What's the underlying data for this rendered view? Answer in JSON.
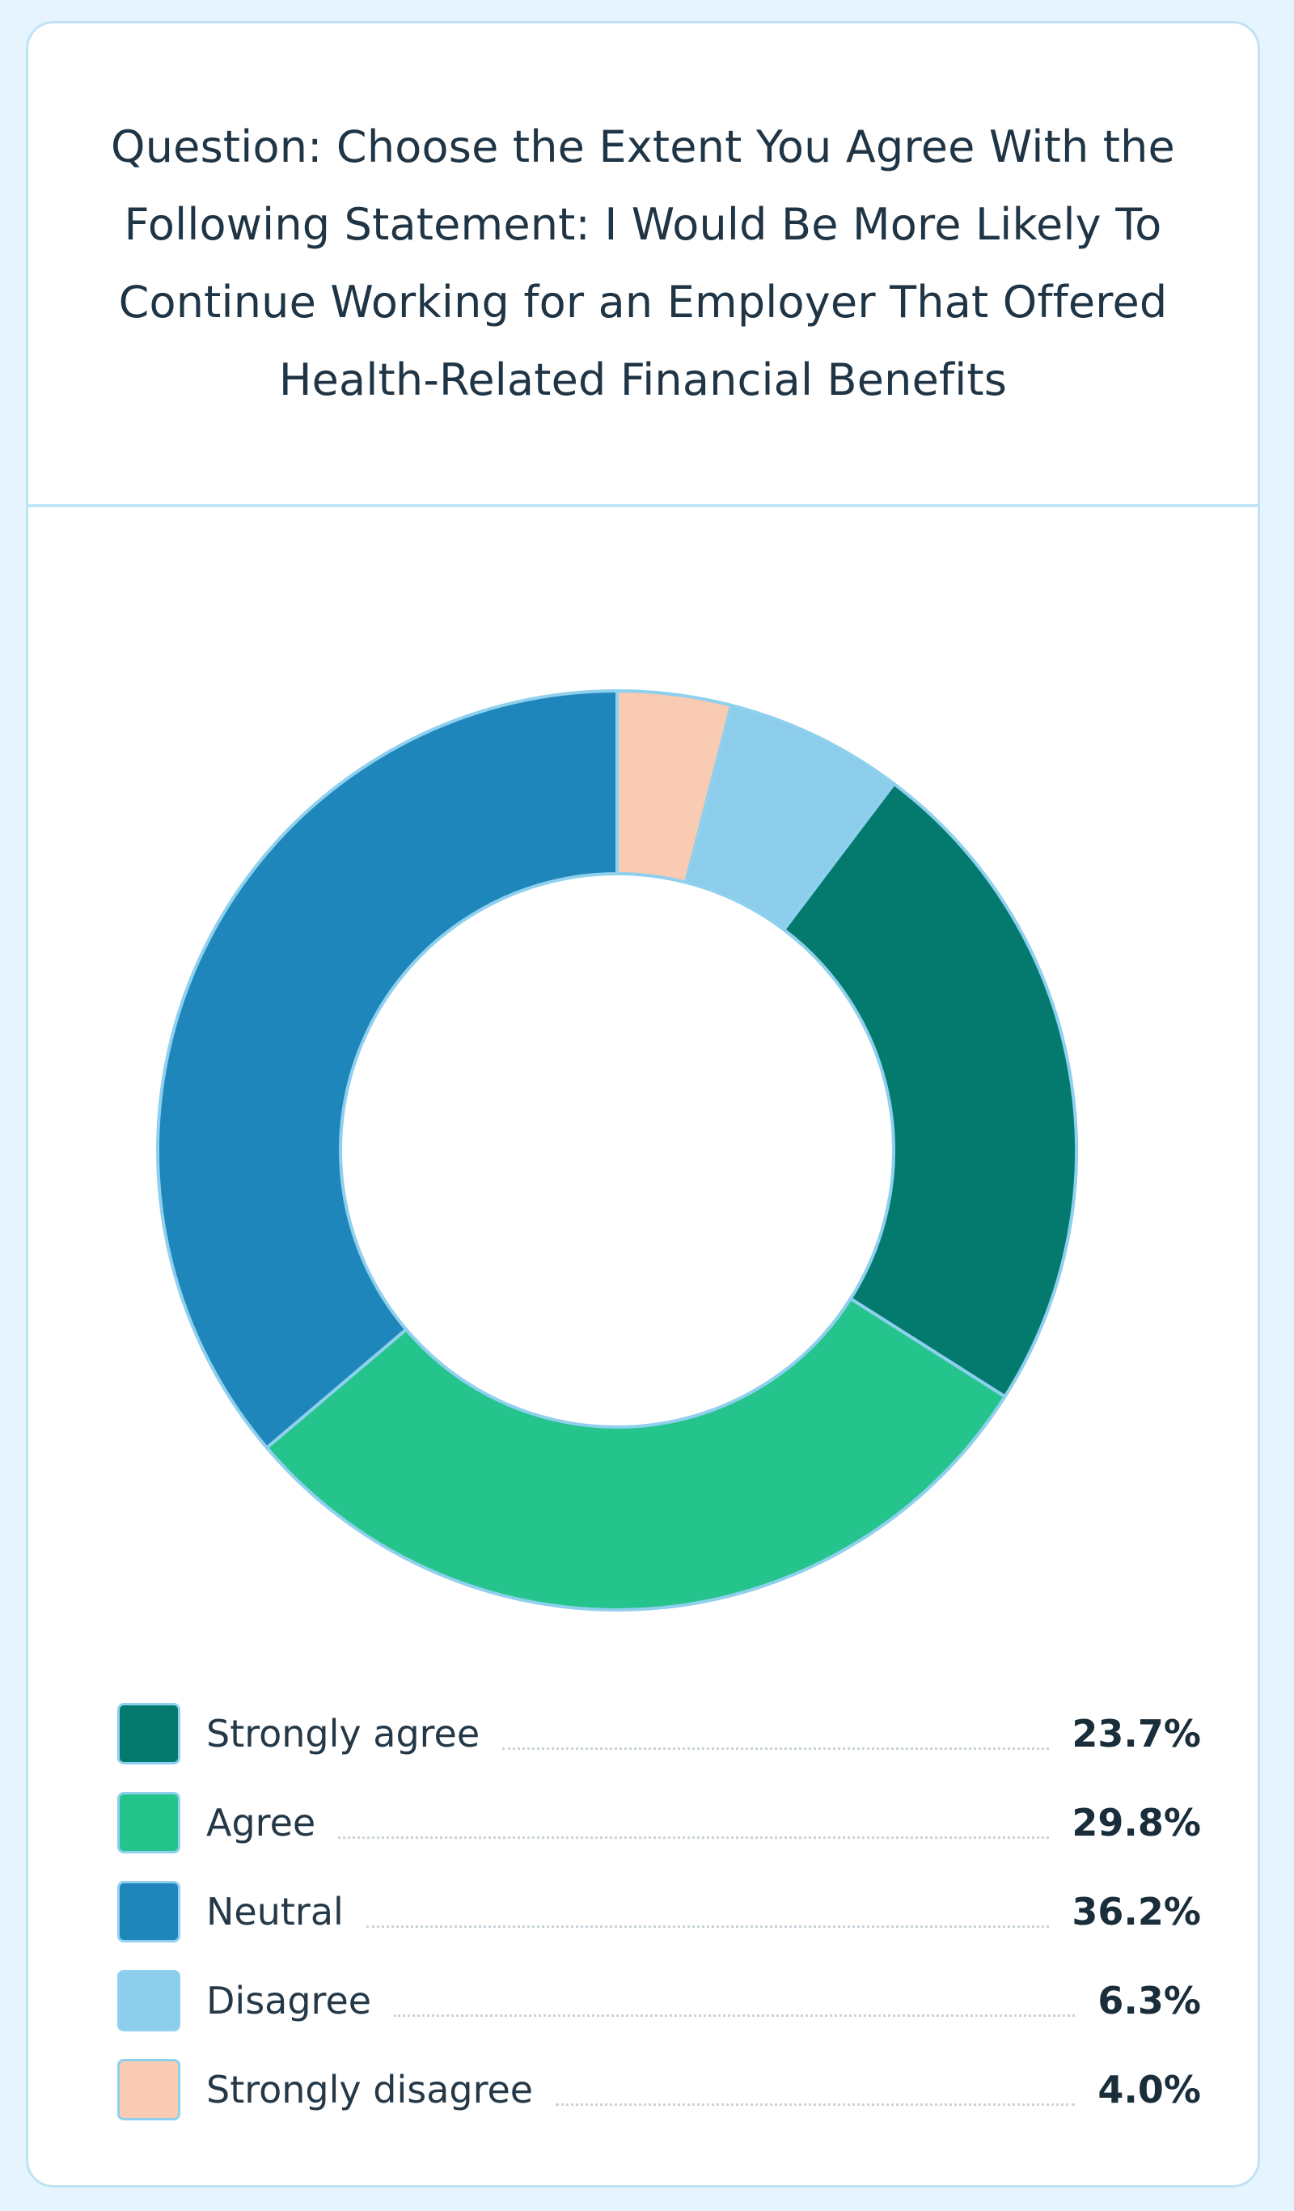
{
  "chart_data": {
    "type": "pie",
    "title": "Question: Choose the Extent You Agree With the Following Statement: I Would Be More Likely To Continue Working for an Employer That Offered Health-Related Financial Benefits",
    "donut": true,
    "categories": [
      "Strongly agree",
      "Agree",
      "Neutral",
      "Disagree",
      "Strongly disagree"
    ],
    "values": [
      23.7,
      29.8,
      36.2,
      6.3,
      4.0
    ],
    "value_labels": [
      "23.7%",
      "29.8%",
      "36.2%",
      "6.3%",
      "4.0%"
    ],
    "colors": [
      "#047a6f",
      "#25c48d",
      "#1f86bb",
      "#8dcdec",
      "#f8cbb2"
    ],
    "slice_border_color": "#8fd0ee",
    "legend_position": "bottom"
  }
}
